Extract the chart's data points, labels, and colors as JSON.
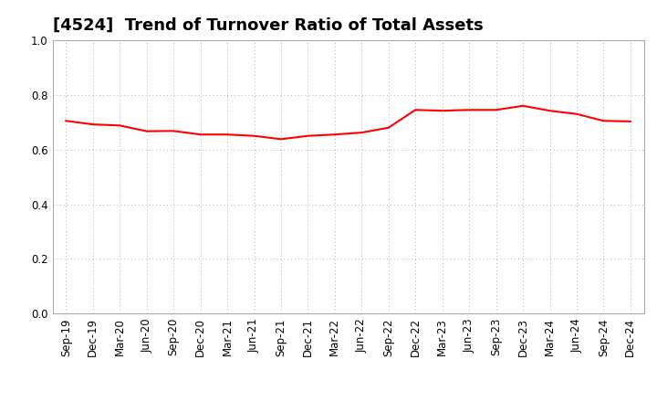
{
  "title": "[4524]  Trend of Turnover Ratio of Total Assets",
  "xlabels": [
    "Sep-19",
    "Dec-19",
    "Mar-20",
    "Jun-20",
    "Sep-20",
    "Dec-20",
    "Mar-21",
    "Jun-21",
    "Sep-21",
    "Dec-21",
    "Mar-22",
    "Jun-22",
    "Sep-22",
    "Dec-22",
    "Mar-23",
    "Jun-23",
    "Sep-23",
    "Dec-23",
    "Mar-24",
    "Jun-24",
    "Sep-24",
    "Dec-24"
  ],
  "values": [
    0.705,
    0.692,
    0.688,
    0.667,
    0.668,
    0.655,
    0.655,
    0.65,
    0.638,
    0.65,
    0.655,
    0.662,
    0.68,
    0.745,
    0.742,
    0.745,
    0.745,
    0.76,
    0.742,
    0.73,
    0.705,
    0.703
  ],
  "ylim": [
    0.0,
    1.0
  ],
  "yticks": [
    0.0,
    0.2,
    0.4,
    0.6,
    0.8,
    1.0
  ],
  "line_color": "#FF0000",
  "line_width": 1.5,
  "background_color": "#FFFFFF",
  "grid_color": "#AAAAAA",
  "title_fontsize": 13,
  "tick_fontsize": 8.5
}
